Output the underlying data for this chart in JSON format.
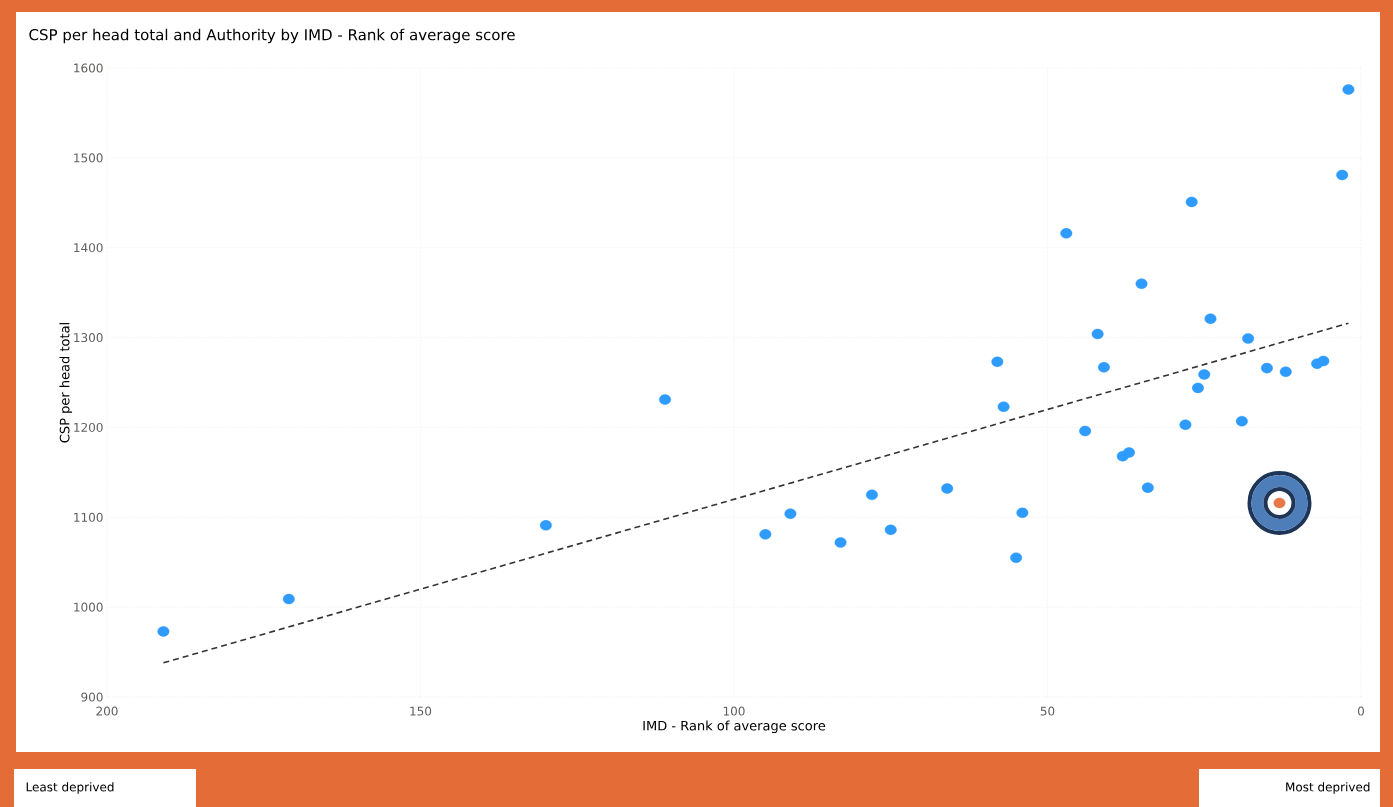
{
  "chart_data": {
    "type": "scatter",
    "title": "CSP per head total and Authority by IMD - Rank of average score",
    "xlabel": "IMD - Rank of average score",
    "ylabel": "CSP per head total",
    "xlim": [
      200,
      0
    ],
    "xticks": [
      200,
      150,
      100,
      50,
      0
    ],
    "ylim": [
      900,
      1600
    ],
    "yticks": [
      900,
      1000,
      1100,
      1200,
      1300,
      1400,
      1500,
      1600
    ],
    "grid": true,
    "annotations": [
      "Least deprived",
      "Most deprived"
    ],
    "series": [
      {
        "color": "#2e9bfd",
        "x": [
          191,
          171,
          130,
          111,
          95,
          91,
          83,
          78,
          75,
          66,
          58,
          57,
          55,
          54,
          47,
          44,
          42,
          41,
          38,
          37,
          35,
          34,
          28,
          27,
          26,
          25,
          24,
          19,
          18,
          15,
          12,
          7,
          6,
          3,
          2
        ],
        "values": [
          973,
          1009,
          1091,
          1231,
          1081,
          1104,
          1072,
          1125,
          1086,
          1132,
          1273,
          1223,
          1055,
          1105,
          1416,
          1196,
          1304,
          1267,
          1168,
          1172,
          1360,
          1133,
          1203,
          1451,
          1244,
          1259,
          1321,
          1207,
          1299,
          1266,
          1262,
          1271,
          1274,
          1481,
          1576
        ]
      },
      {
        "color": "#e8784a",
        "x": [
          13
        ],
        "values": [
          1116
        ]
      },
      {
        "type": "line",
        "color": "#333333",
        "line_style": "dashed",
        "marker": "none",
        "x": [
          191,
          2
        ],
        "values": [
          938,
          1316
        ]
      }
    ]
  }
}
